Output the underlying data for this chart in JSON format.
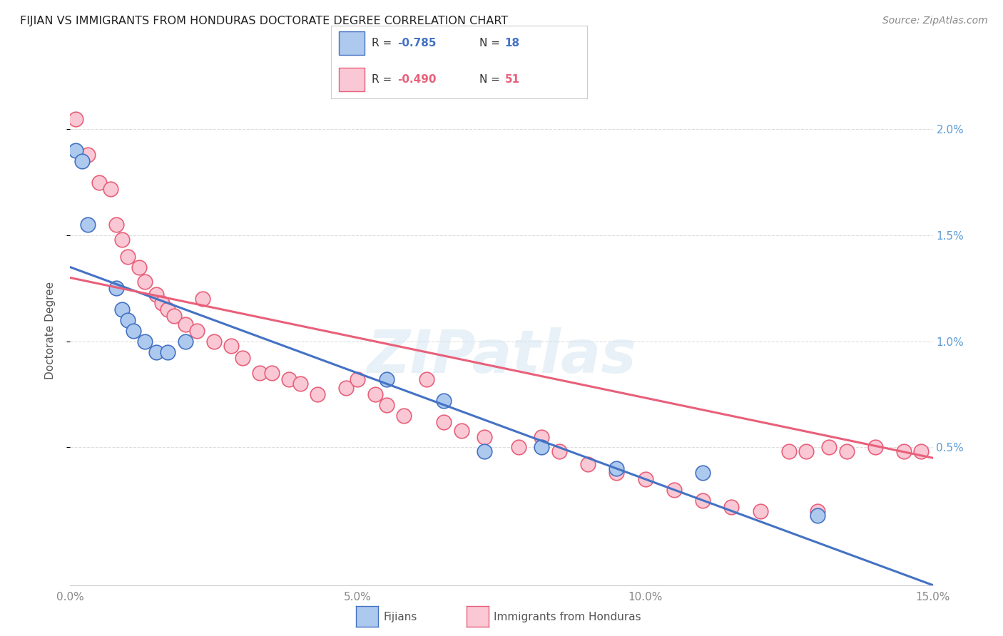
{
  "title": "FIJIAN VS IMMIGRANTS FROM HONDURAS DOCTORATE DEGREE CORRELATION CHART",
  "source": "Source: ZipAtlas.com",
  "ylabel": "Doctorate Degree",
  "ytick_labels": [
    "0.5%",
    "1.0%",
    "1.5%",
    "2.0%"
  ],
  "ytick_values": [
    0.005,
    0.01,
    0.015,
    0.02
  ],
  "xmin": 0.0,
  "xmax": 0.15,
  "ymin": -0.0015,
  "ymax": 0.0225,
  "watermark": "ZIPatlas",
  "fijian_color": "#adc9ee",
  "honduras_color": "#f9c8d4",
  "fijian_line_color": "#4472c4",
  "honduras_line_color": "#e8607a",
  "fijian_points_x": [
    0.001,
    0.002,
    0.003,
    0.008,
    0.009,
    0.01,
    0.011,
    0.013,
    0.015,
    0.017,
    0.02,
    0.055,
    0.065,
    0.072,
    0.082,
    0.095,
    0.11,
    0.13
  ],
  "fijian_points_y": [
    0.019,
    0.0185,
    0.0155,
    0.0125,
    0.0115,
    0.011,
    0.0105,
    0.01,
    0.0095,
    0.0095,
    0.01,
    0.0082,
    0.0072,
    0.0048,
    0.005,
    0.004,
    0.0038,
    0.0018
  ],
  "honduras_points_x": [
    0.001,
    0.003,
    0.005,
    0.007,
    0.008,
    0.009,
    0.01,
    0.012,
    0.013,
    0.015,
    0.016,
    0.017,
    0.018,
    0.02,
    0.022,
    0.023,
    0.025,
    0.028,
    0.03,
    0.033,
    0.035,
    0.038,
    0.04,
    0.043,
    0.048,
    0.05,
    0.053,
    0.055,
    0.058,
    0.062,
    0.065,
    0.068,
    0.072,
    0.078,
    0.082,
    0.085,
    0.09,
    0.095,
    0.1,
    0.105,
    0.11,
    0.115,
    0.12,
    0.125,
    0.128,
    0.13,
    0.132,
    0.135,
    0.14,
    0.145,
    0.148
  ],
  "honduras_points_y": [
    0.0205,
    0.0188,
    0.0175,
    0.0172,
    0.0155,
    0.0148,
    0.014,
    0.0135,
    0.0128,
    0.0122,
    0.0118,
    0.0115,
    0.0112,
    0.0108,
    0.0105,
    0.012,
    0.01,
    0.0098,
    0.0092,
    0.0085,
    0.0085,
    0.0082,
    0.008,
    0.0075,
    0.0078,
    0.0082,
    0.0075,
    0.007,
    0.0065,
    0.0082,
    0.0062,
    0.0058,
    0.0055,
    0.005,
    0.0055,
    0.0048,
    0.0042,
    0.0038,
    0.0035,
    0.003,
    0.0025,
    0.0022,
    0.002,
    0.0048,
    0.0048,
    0.002,
    0.005,
    0.0048,
    0.005,
    0.0048,
    0.0048
  ],
  "fij_line_x0": 0.0,
  "fij_line_x1": 0.15,
  "fij_line_y0": 0.0135,
  "fij_line_y1": -0.0015,
  "hon_line_x0": 0.0,
  "hon_line_x1": 0.15,
  "hon_line_y0": 0.013,
  "hon_line_y1": 0.0045
}
